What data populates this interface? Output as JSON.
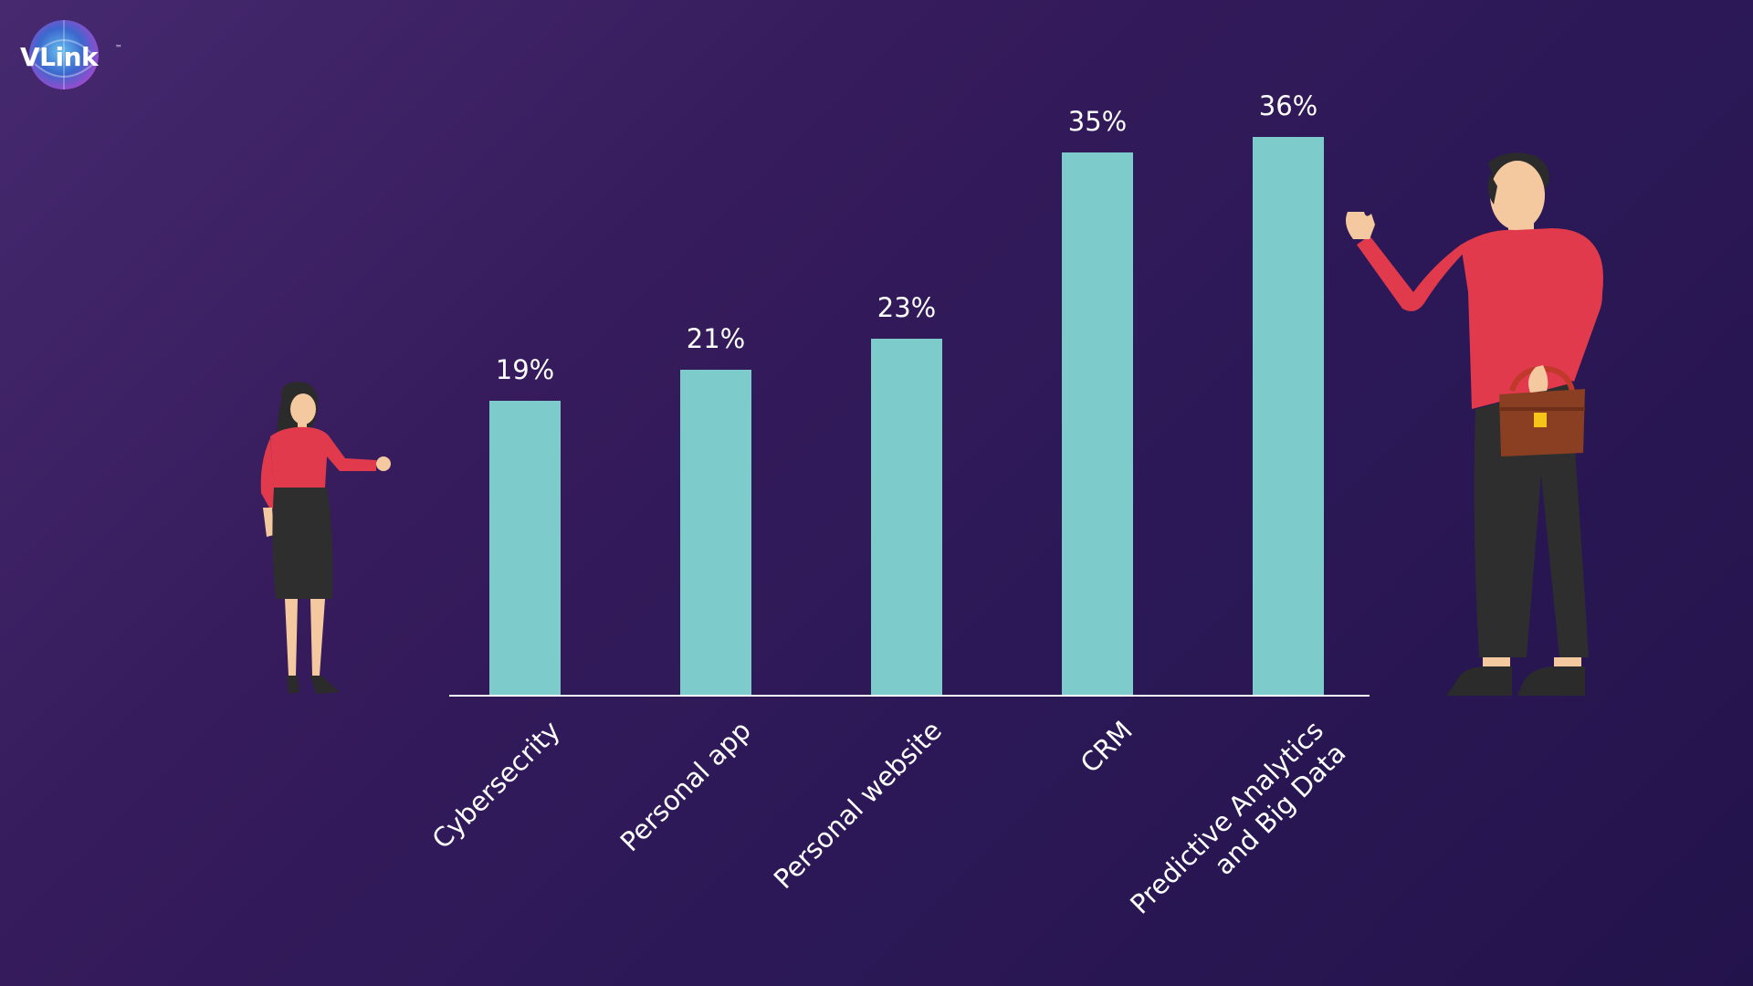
{
  "brand": {
    "logo_text": "VLink",
    "logo_mark": "™"
  },
  "colors": {
    "bar": "#7ecbcb",
    "text": "#ffffff",
    "axis": "#ffffff",
    "shirt": "#e13a4d",
    "trousers": "#2e2e2e",
    "skin": "#f4c9a0",
    "hair": "#2b2b2b",
    "bag": "#8a3f22"
  },
  "chart_data": {
    "type": "bar",
    "categories": [
      "Cybersecrity",
      "Personal app",
      "Personal website",
      "CRM",
      "Predictive Analytics and Big Data"
    ],
    "category_lines": [
      [
        "Cybersecrity"
      ],
      [
        "Personal app"
      ],
      [
        "Personal website"
      ],
      [
        "CRM"
      ],
      [
        "Predictive Analytics",
        "and Big Data"
      ]
    ],
    "values": [
      19,
      21,
      23,
      35,
      36
    ],
    "value_labels": [
      "19%",
      "21%",
      "23%",
      "35%",
      "36%"
    ],
    "unit": "%",
    "ylim": [
      0,
      40
    ],
    "grid": false,
    "legend": "none",
    "tick_label_rotation": -45
  },
  "illustrations": [
    "woman-figure",
    "man-with-briefcase-figure"
  ]
}
